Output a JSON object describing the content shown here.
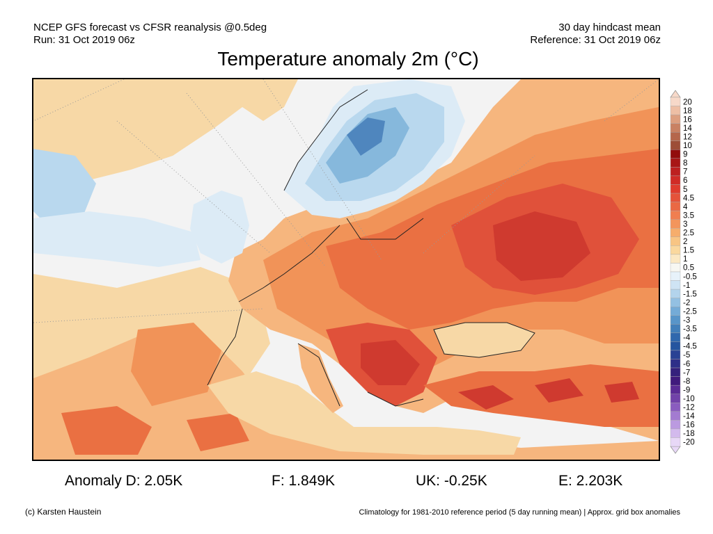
{
  "header": {
    "left_line1": "NCEP GFS forecast vs CFSR reanalysis @0.5deg",
    "left_line2": "Run: 31 Oct 2019 06z",
    "right_line1": "30 day hindcast mean",
    "right_line2": "Reference: 31 Oct 2019 06z"
  },
  "title": "Temperature anomaly 2m (°C)",
  "map": {
    "region": "Europe",
    "colors": {
      "sea": "#f3f3f3",
      "neutral": "#fbf3ea",
      "weak_warm": "#f7d8a6",
      "warm_1": "#f6b67e",
      "warm_2": "#f19358",
      "warm_3": "#ea7042",
      "warm_4": "#e0513a",
      "hot": "#cf3a2f",
      "very_hot": "#b02a29",
      "cool_1": "#dcebf6",
      "cool_2": "#b9d8ee",
      "cool_3": "#86b8dc",
      "cool_4": "#4f86be",
      "boundary": "#222222"
    }
  },
  "colorbar": {
    "labels": [
      "20",
      "18",
      "16",
      "14",
      "12",
      "10",
      "9",
      "8",
      "7",
      "6",
      "5",
      "4.5",
      "4",
      "3.5",
      "3",
      "2.5",
      "2",
      "1.5",
      "1",
      "0.5",
      "-0.5",
      "-1",
      "-1.5",
      "-2",
      "-2.5",
      "-3",
      "-3.5",
      "-4",
      "-4.5",
      "-5",
      "-6",
      "-7",
      "-8",
      "-9",
      "-10",
      "-12",
      "-14",
      "-16",
      "-18",
      "-20"
    ],
    "colors": [
      "#f7d9c9",
      "#eebfa5",
      "#dd9f80",
      "#c98163",
      "#b5664b",
      "#9d4d37",
      "#920d0d",
      "#a81616",
      "#bd2020",
      "#d02b26",
      "#df3b2d",
      "#e5523a",
      "#ea6844",
      "#f07e50",
      "#f3955c",
      "#f6ad6c",
      "#f8c584",
      "#fad89e",
      "#fbe8c3",
      "#f7f7f2",
      "#e7f2fa",
      "#cfe4f4",
      "#b3d4ec",
      "#93c0e2",
      "#74abd7",
      "#5895c9",
      "#427fba",
      "#3068ad",
      "#25559f",
      "#2a4294",
      "#2e2f88",
      "#35217c",
      "#401a7c",
      "#5a2b95",
      "#7142a9",
      "#8a5cbf",
      "#a37bd1",
      "#bb9ae0",
      "#d3baed",
      "#e8d8f7"
    ]
  },
  "stats": {
    "d": "Anomaly D: 2.05K",
    "f": "F: 1.849K",
    "uk": "UK: -0.25K",
    "e": "E: 2.203K"
  },
  "footer": {
    "left": "(c) Karsten Haustein",
    "right": "Climatology for 1981-2010 reference period (5 day running mean) | Approx. grid box anomalies"
  }
}
